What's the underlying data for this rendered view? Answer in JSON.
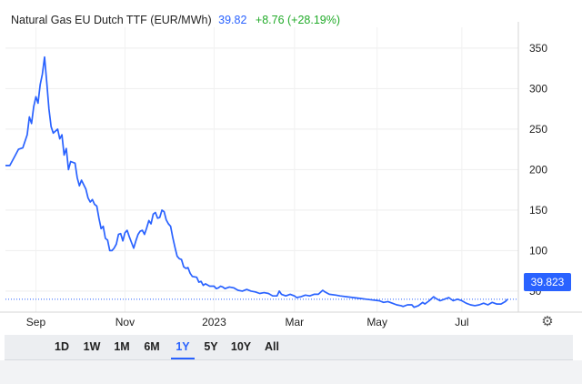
{
  "header": {
    "name": "Natural Gas EU Dutch TTF (EUR/MWh)",
    "price": "39.82",
    "change": "+8.76 (+28.19%)"
  },
  "price_tag": "39.823",
  "settings_icon": "gear-icon",
  "ranges": [
    "1D",
    "1W",
    "1M",
    "6M",
    "1Y",
    "5Y",
    "10Y",
    "All"
  ],
  "active_range": "1Y",
  "colors": {
    "line": "#2962ff",
    "price_tag": "#2962ff",
    "change": "#22ab2a"
  },
  "chart_data": {
    "type": "line",
    "series": [
      {
        "values": [
          [
            0,
            205
          ],
          [
            2,
            205
          ],
          [
            4,
            215
          ],
          [
            6,
            225
          ],
          [
            8,
            227
          ],
          [
            10,
            243
          ],
          [
            11,
            265
          ],
          [
            12,
            257
          ],
          [
            13,
            278
          ],
          [
            14,
            290
          ],
          [
            15,
            282
          ],
          [
            16,
            305
          ],
          [
            17,
            318
          ],
          [
            18,
            339
          ],
          [
            19,
            308
          ],
          [
            20,
            275
          ],
          [
            21,
            253
          ],
          [
            22,
            245
          ],
          [
            24,
            250
          ],
          [
            25,
            238
          ],
          [
            26,
            243
          ],
          [
            27,
            218
          ],
          [
            28,
            226
          ],
          [
            29,
            200
          ],
          [
            30,
            210
          ],
          [
            32,
            208
          ],
          [
            33,
            190
          ],
          [
            34,
            180
          ],
          [
            35,
            187
          ],
          [
            37,
            176
          ],
          [
            38,
            165
          ],
          [
            39,
            160
          ],
          [
            40,
            163
          ],
          [
            41,
            157
          ],
          [
            42,
            155
          ],
          [
            43,
            140
          ],
          [
            44,
            127
          ],
          [
            45,
            130
          ],
          [
            46,
            115
          ],
          [
            47,
            113
          ],
          [
            48,
            100
          ],
          [
            49,
            100
          ],
          [
            50,
            103
          ],
          [
            51,
            108
          ],
          [
            52,
            120
          ],
          [
            53,
            121
          ],
          [
            54,
            112
          ],
          [
            55,
            122
          ],
          [
            56,
            125
          ],
          [
            57,
            117
          ],
          [
            58,
            110
          ],
          [
            59,
            103
          ],
          [
            60,
            112
          ],
          [
            61,
            120
          ],
          [
            62,
            124
          ],
          [
            63,
            125
          ],
          [
            64,
            120
          ],
          [
            65,
            128
          ],
          [
            66,
            137
          ],
          [
            67,
            133
          ],
          [
            68,
            145
          ],
          [
            69,
            147
          ],
          [
            70,
            140
          ],
          [
            71,
            141
          ],
          [
            72,
            150
          ],
          [
            73,
            148
          ],
          [
            74,
            138
          ],
          [
            75,
            133
          ],
          [
            76,
            130
          ],
          [
            77,
            116
          ],
          [
            78,
            104
          ],
          [
            79,
            93
          ],
          [
            80,
            90
          ],
          [
            81,
            89
          ],
          [
            82,
            80
          ],
          [
            83,
            78
          ],
          [
            84,
            79
          ],
          [
            85,
            72
          ],
          [
            86,
            68
          ],
          [
            88,
            67
          ],
          [
            89,
            61
          ],
          [
            90,
            62
          ],
          [
            91,
            57
          ],
          [
            92,
            59
          ],
          [
            94,
            56
          ],
          [
            96,
            56
          ],
          [
            97,
            53
          ],
          [
            98,
            54
          ],
          [
            99,
            56
          ],
          [
            100,
            55
          ],
          [
            101,
            53
          ],
          [
            103,
            55
          ],
          [
            105,
            54
          ],
          [
            107,
            51
          ],
          [
            109,
            50
          ],
          [
            111,
            52
          ],
          [
            113,
            50
          ],
          [
            115,
            49
          ],
          [
            117,
            47
          ],
          [
            119,
            48
          ],
          [
            121,
            47
          ],
          [
            123,
            44
          ],
          [
            125,
            44
          ],
          [
            126,
            50
          ],
          [
            127,
            46
          ],
          [
            129,
            44
          ],
          [
            131,
            46
          ],
          [
            133,
            44
          ],
          [
            134,
            42
          ],
          [
            136,
            43
          ],
          [
            138,
            45
          ],
          [
            140,
            44
          ],
          [
            142,
            46
          ],
          [
            144,
            46
          ],
          [
            146,
            51
          ],
          [
            147,
            49
          ],
          [
            149,
            46
          ],
          [
            152,
            45
          ],
          [
            154,
            44
          ],
          [
            157,
            43
          ],
          [
            160,
            42
          ],
          [
            163,
            41
          ],
          [
            166,
            40
          ],
          [
            169,
            39
          ],
          [
            172,
            38
          ],
          [
            174,
            36
          ],
          [
            176,
            37
          ],
          [
            178,
            35
          ],
          [
            180,
            33
          ],
          [
            182,
            32
          ],
          [
            183,
            31
          ],
          [
            185,
            33
          ],
          [
            187,
            33
          ],
          [
            188,
            30
          ],
          [
            190,
            32
          ],
          [
            192,
            36
          ],
          [
            193,
            34
          ],
          [
            195,
            38
          ],
          [
            197,
            43
          ],
          [
            198,
            41
          ],
          [
            200,
            38
          ],
          [
            202,
            40
          ],
          [
            204,
            42
          ],
          [
            206,
            38
          ],
          [
            208,
            40
          ],
          [
            210,
            38
          ],
          [
            212,
            35
          ],
          [
            214,
            33
          ],
          [
            216,
            32
          ],
          [
            218,
            33
          ],
          [
            220,
            35
          ],
          [
            222,
            33
          ],
          [
            224,
            36
          ],
          [
            226,
            34
          ],
          [
            228,
            34
          ],
          [
            230,
            37
          ],
          [
            231,
            39.82
          ]
        ]
      }
    ],
    "x_tick_labels": [
      {
        "label": "Sep",
        "x": 14
      },
      {
        "label": "Nov",
        "x": 55
      },
      {
        "label": "2023",
        "x": 96
      },
      {
        "label": "Mar",
        "x": 133
      },
      {
        "label": "May",
        "x": 171
      },
      {
        "label": "Jul",
        "x": 210
      }
    ],
    "y_ticks": [
      50,
      100,
      150,
      200,
      250,
      300,
      350
    ],
    "xlim": [
      0,
      236
    ],
    "ylim": [
      24,
      369
    ],
    "last_value": 39.823,
    "grid": "horizontal-and-vertical",
    "y_axis_position": "right"
  }
}
